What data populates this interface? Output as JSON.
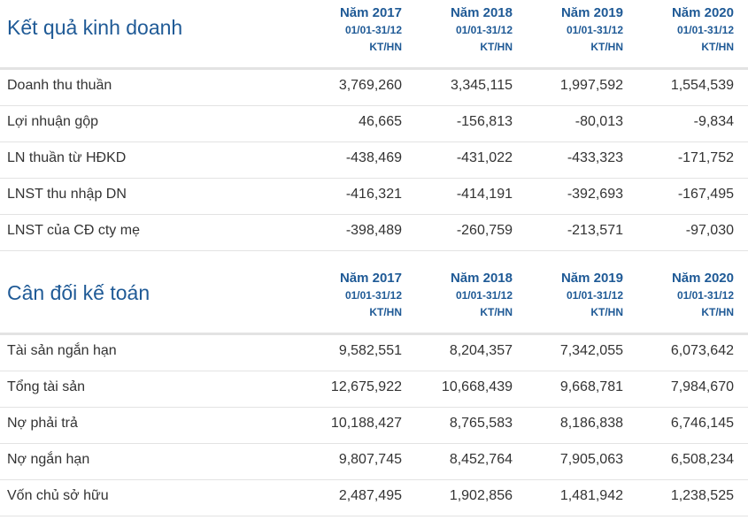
{
  "income": {
    "title": "Kết quả kinh doanh",
    "columns": [
      {
        "year": "Năm 2017",
        "period": "01/01-31/12",
        "unit": "KT/HN"
      },
      {
        "year": "Năm 2018",
        "period": "01/01-31/12",
        "unit": "KT/HN"
      },
      {
        "year": "Năm 2019",
        "period": "01/01-31/12",
        "unit": "KT/HN"
      },
      {
        "year": "Năm 2020",
        "period": "01/01-31/12",
        "unit": "KT/HN"
      }
    ],
    "rows": [
      {
        "label": "Doanh thu thuần",
        "values": [
          "3,769,260",
          "3,345,115",
          "1,997,592",
          "1,554,539"
        ]
      },
      {
        "label": "Lợi nhuận gộp",
        "values": [
          "46,665",
          "-156,813",
          "-80,013",
          "-9,834"
        ]
      },
      {
        "label": "LN thuần từ HĐKD",
        "values": [
          "-438,469",
          "-431,022",
          "-433,323",
          "-171,752"
        ]
      },
      {
        "label": "LNST thu nhập DN",
        "values": [
          "-416,321",
          "-414,191",
          "-392,693",
          "-167,495"
        ]
      },
      {
        "label": "LNST của CĐ cty mẹ",
        "values": [
          "-398,489",
          "-260,759",
          "-213,571",
          "-97,030"
        ]
      }
    ]
  },
  "balance": {
    "title": "Cân đối kế toán",
    "columns": [
      {
        "year": "Năm 2017",
        "period": "01/01-31/12",
        "unit": "KT/HN"
      },
      {
        "year": "Năm 2018",
        "period": "01/01-31/12",
        "unit": "KT/HN"
      },
      {
        "year": "Năm 2019",
        "period": "01/01-31/12",
        "unit": "KT/HN"
      },
      {
        "year": "Năm 2020",
        "period": "01/01-31/12",
        "unit": "KT/HN"
      }
    ],
    "rows": [
      {
        "label": "Tài sản ngắn hạn",
        "values": [
          "9,582,551",
          "8,204,357",
          "7,342,055",
          "6,073,642"
        ]
      },
      {
        "label": "Tổng tài sản",
        "values": [
          "12,675,922",
          "10,668,439",
          "9,668,781",
          "7,984,670"
        ]
      },
      {
        "label": "Nợ phải trả",
        "values": [
          "10,188,427",
          "8,765,583",
          "8,186,838",
          "6,746,145"
        ]
      },
      {
        "label": "Nợ ngắn hạn",
        "values": [
          "9,807,745",
          "8,452,764",
          "7,905,063",
          "6,508,234"
        ]
      },
      {
        "label": "Vốn chủ sở hữu",
        "values": [
          "2,487,495",
          "1,902,856",
          "1,481,942",
          "1,238,525"
        ]
      }
    ]
  }
}
